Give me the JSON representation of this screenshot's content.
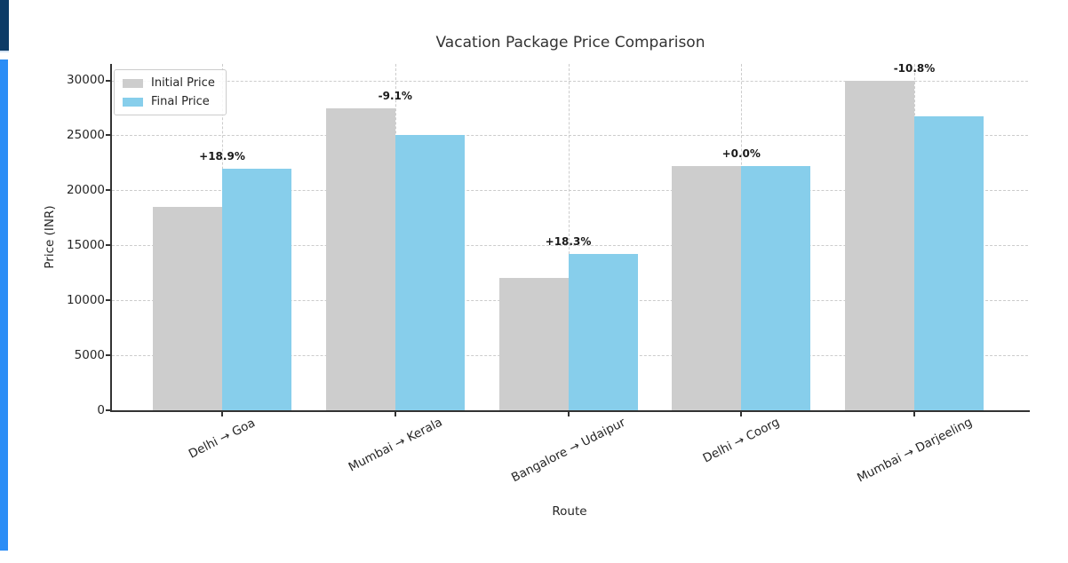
{
  "window": {
    "accent_top_color": "#0d3b66",
    "accent_divider_color": "#d5e3f3",
    "accent_side_color": "#2b8df6",
    "background": "#ffffff"
  },
  "chart_data": {
    "type": "bar",
    "title": "Vacation Package Price Comparison",
    "xlabel": "Route",
    "ylabel": "Price (INR)",
    "categories": [
      "Delhi → Goa",
      "Mumbai → Kerala",
      "Bangalore → Udaipur",
      "Delhi → Coorg",
      "Mumbai → Darjeeling"
    ],
    "series": [
      {
        "name": "Initial Price",
        "color": "#cdcdcd",
        "values": [
          18500,
          27500,
          12000,
          22250,
          30000
        ]
      },
      {
        "name": "Final Price",
        "color": "#87ceeb",
        "values": [
          22000,
          25000,
          14200,
          22250,
          26760
        ]
      }
    ],
    "annotations": [
      "+18.9%",
      "-9.1%",
      "+18.3%",
      "+0.0%",
      "-10.8%"
    ],
    "yticks": [
      0,
      5000,
      10000,
      15000,
      20000,
      25000,
      30000
    ],
    "ylim": [
      0,
      31500
    ],
    "grid": true,
    "grid_style": "dashed",
    "grid_color": "#cccccc",
    "axis_color": "#333333",
    "legend_position": "upper left"
  }
}
